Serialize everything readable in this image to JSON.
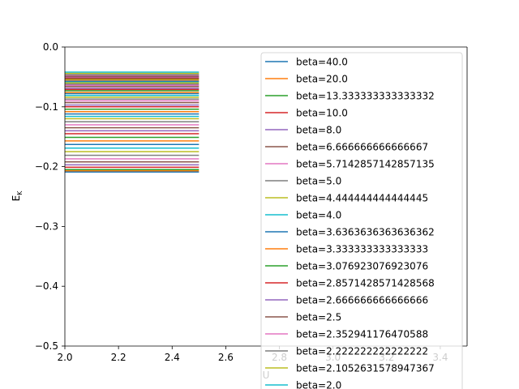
{
  "chart_data": {
    "type": "line",
    "title": "",
    "xlabel": "U",
    "ylabel": "E_K",
    "xlim": [
      2.0,
      3.5
    ],
    "ylim": [
      -0.5,
      0.0
    ],
    "x_ticks": [
      "2.0",
      "2.2",
      "2.4",
      "2.6",
      "2.8",
      "3.0",
      "3.2",
      "3.4"
    ],
    "y_ticks": [
      "0.0",
      "−0.1",
      "−0.2",
      "−0.3",
      "−0.4",
      "−0.5"
    ],
    "grid": false,
    "legend_position": "upper right",
    "x": [
      2.0,
      2.5
    ],
    "series": [
      {
        "name": "beta=40.0",
        "color": "#1f77b4",
        "values": [
          -0.209,
          -0.209
        ]
      },
      {
        "name": "beta=20.0",
        "color": "#ff7f0e",
        "values": [
          -0.207,
          -0.207
        ]
      },
      {
        "name": "beta=13.333333333333332",
        "color": "#2ca02c",
        "values": [
          -0.205,
          -0.205
        ]
      },
      {
        "name": "beta=10.0",
        "color": "#d62728",
        "values": [
          -0.201,
          -0.201
        ]
      },
      {
        "name": "beta=8.0",
        "color": "#9467bd",
        "values": [
          -0.197,
          -0.197
        ]
      },
      {
        "name": "beta=6.666666666666667",
        "color": "#8c564b",
        "values": [
          -0.192,
          -0.192
        ]
      },
      {
        "name": "beta=5.7142857142857135",
        "color": "#e377c2",
        "values": [
          -0.187,
          -0.187
        ]
      },
      {
        "name": "beta=5.0",
        "color": "#7f7f7f",
        "values": [
          -0.181,
          -0.181
        ]
      },
      {
        "name": "beta=4.444444444444445",
        "color": "#bcbd22",
        "values": [
          -0.175,
          -0.175
        ]
      },
      {
        "name": "beta=4.0",
        "color": "#17becf",
        "values": [
          -0.169,
          -0.169
        ]
      },
      {
        "name": "beta=3.6363636363636362",
        "color": "#1f77b4",
        "values": [
          -0.163,
          -0.163
        ]
      },
      {
        "name": "beta=3.333333333333333",
        "color": "#ff7f0e",
        "values": [
          -0.157,
          -0.157
        ]
      },
      {
        "name": "beta=3.076923076923076",
        "color": "#2ca02c",
        "values": [
          -0.151,
          -0.151
        ]
      },
      {
        "name": "beta=2.8571428571428568",
        "color": "#d62728",
        "values": [
          -0.145,
          -0.145
        ]
      },
      {
        "name": "beta=2.666666666666666",
        "color": "#9467bd",
        "values": [
          -0.14,
          -0.14
        ]
      },
      {
        "name": "beta=2.5",
        "color": "#8c564b",
        "values": [
          -0.135,
          -0.135
        ]
      },
      {
        "name": "beta=2.352941176470588",
        "color": "#e377c2",
        "values": [
          -0.13,
          -0.13
        ]
      },
      {
        "name": "beta=2.222222222222222",
        "color": "#7f7f7f",
        "values": [
          -0.125,
          -0.125
        ]
      },
      {
        "name": "beta=2.1052631578947367",
        "color": "#bcbd22",
        "values": [
          -0.12,
          -0.12
        ]
      },
      {
        "name": "beta=2.0",
        "color": "#17becf",
        "values": [
          -0.116,
          -0.116
        ]
      },
      {
        "name": "",
        "color": "#1f77b4",
        "values": [
          -0.112,
          -0.112
        ]
      },
      {
        "name": "",
        "color": "#ff7f0e",
        "values": [
          -0.108,
          -0.108
        ]
      },
      {
        "name": "",
        "color": "#2ca02c",
        "values": [
          -0.104,
          -0.104
        ]
      },
      {
        "name": "",
        "color": "#d62728",
        "values": [
          -0.1,
          -0.1
        ]
      },
      {
        "name": "",
        "color": "#9467bd",
        "values": [
          -0.097,
          -0.097
        ]
      },
      {
        "name": "",
        "color": "#8c564b",
        "values": [
          -0.093,
          -0.093
        ]
      },
      {
        "name": "",
        "color": "#e377c2",
        "values": [
          -0.09,
          -0.09
        ]
      },
      {
        "name": "",
        "color": "#7f7f7f",
        "values": [
          -0.087,
          -0.087
        ]
      },
      {
        "name": "",
        "color": "#bcbd22",
        "values": [
          -0.084,
          -0.084
        ]
      },
      {
        "name": "",
        "color": "#17becf",
        "values": [
          -0.081,
          -0.081
        ]
      },
      {
        "name": "",
        "color": "#1f77b4",
        "values": [
          -0.078,
          -0.078
        ]
      },
      {
        "name": "",
        "color": "#ff7f0e",
        "values": [
          -0.076,
          -0.076
        ]
      },
      {
        "name": "",
        "color": "#2ca02c",
        "values": [
          -0.073,
          -0.073
        ]
      },
      {
        "name": "",
        "color": "#d62728",
        "values": [
          -0.071,
          -0.071
        ]
      },
      {
        "name": "",
        "color": "#9467bd",
        "values": [
          -0.069,
          -0.069
        ]
      },
      {
        "name": "",
        "color": "#8c564b",
        "values": [
          -0.066,
          -0.066
        ]
      },
      {
        "name": "",
        "color": "#e377c2",
        "values": [
          -0.064,
          -0.064
        ]
      },
      {
        "name": "",
        "color": "#7f7f7f",
        "values": [
          -0.062,
          -0.062
        ]
      },
      {
        "name": "",
        "color": "#bcbd22",
        "values": [
          -0.06,
          -0.06
        ]
      },
      {
        "name": "",
        "color": "#17becf",
        "values": [
          -0.058,
          -0.058
        ]
      },
      {
        "name": "",
        "color": "#1f77b4",
        "values": [
          -0.057,
          -0.057
        ]
      },
      {
        "name": "",
        "color": "#ff7f0e",
        "values": [
          -0.055,
          -0.055
        ]
      },
      {
        "name": "",
        "color": "#2ca02c",
        "values": [
          -0.053,
          -0.053
        ]
      },
      {
        "name": "",
        "color": "#d62728",
        "values": [
          -0.052,
          -0.052
        ]
      },
      {
        "name": "",
        "color": "#9467bd",
        "values": [
          -0.05,
          -0.05
        ]
      },
      {
        "name": "",
        "color": "#8c564b",
        "values": [
          -0.049,
          -0.049
        ]
      },
      {
        "name": "",
        "color": "#e377c2",
        "values": [
          -0.047,
          -0.047
        ]
      },
      {
        "name": "",
        "color": "#7f7f7f",
        "values": [
          -0.046,
          -0.046
        ]
      },
      {
        "name": "",
        "color": "#bcbd22",
        "values": [
          -0.044,
          -0.044
        ]
      },
      {
        "name": "",
        "color": "#17becf",
        "values": [
          -0.042,
          -0.042
        ]
      }
    ]
  }
}
